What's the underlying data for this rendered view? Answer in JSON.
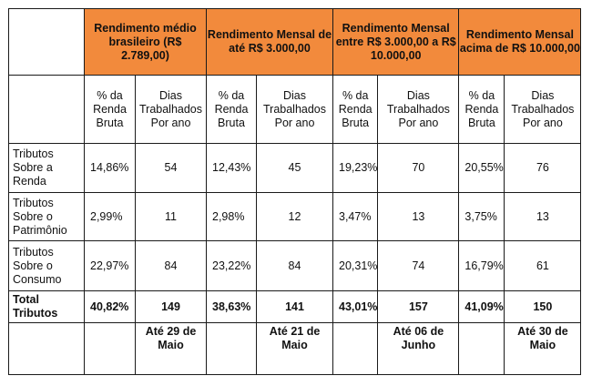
{
  "headers": {
    "g1": "Rendimento médio brasileiro (R$ 2.789,00)",
    "g2": "Rendimento Mensal de até R$ 3.000,00",
    "g3": "Rendimento Mensal entre R$ 3.000,00 a R$ 10.000,00",
    "g4": "Rendimento Mensal acima de R$ 10.000,00"
  },
  "subheaders": {
    "pct": "% da Renda Bruta",
    "dias": "Dias Trabalhados Por ano"
  },
  "rows": [
    {
      "label": "Tributos Sobre a Renda",
      "values": [
        "14,86%",
        "54",
        "12,43%",
        "45",
        "19,23%",
        "70",
        "20,55%",
        "76"
      ]
    },
    {
      "label": "Tributos Sobre o Patrimônio",
      "values": [
        "2,99%",
        "11",
        "2,98%",
        "12",
        "3,47%",
        "13",
        "3,75%",
        "13"
      ]
    },
    {
      "label": "Tributos Sobre o Consumo",
      "values": [
        "22,97%",
        "84",
        "23,22%",
        "84",
        "20,31%",
        "74",
        "16,79%",
        "61"
      ]
    },
    {
      "label": "Total Tributos",
      "values": [
        "40,82%",
        "149",
        "38,63%",
        "141",
        "43,01%",
        "157",
        "41,09%",
        "150"
      ]
    }
  ],
  "dates": [
    "Até 29 de Maio",
    "Até 21 de Maio",
    "Até 06 de Junho",
    "Até 30 de Maio"
  ],
  "colors": {
    "header_bg": "#f28a3c",
    "border": "#1a1a1a"
  }
}
